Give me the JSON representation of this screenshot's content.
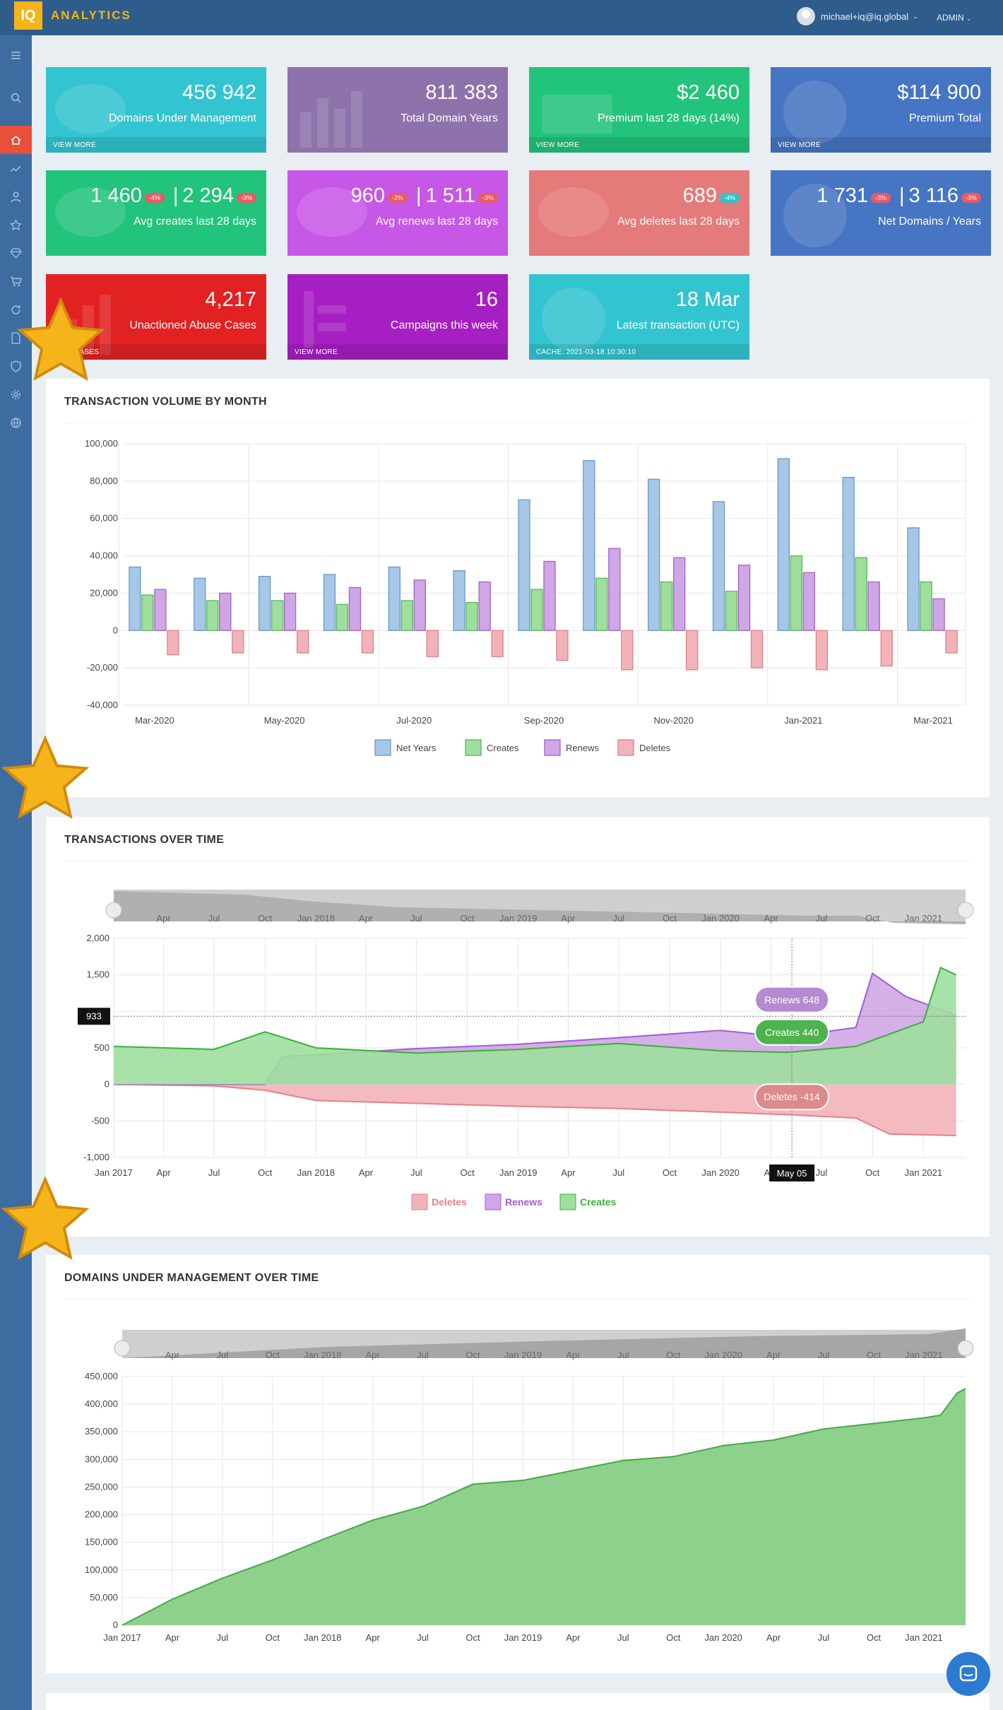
{
  "topbar": {
    "logo": "IQ",
    "brand": "ANALYTICS",
    "user": "michael+iq@iq.global",
    "role": "ADMIN"
  },
  "sidebar": [
    "menu-icon",
    "search-icon",
    "home-icon",
    "trend-icon",
    "user-icon",
    "star-icon",
    "diamond-icon",
    "cart-icon",
    "refresh-icon",
    "document-icon",
    "shield-icon",
    "gear-icon",
    "globe-icon"
  ],
  "tiles": [
    {
      "id": "domains",
      "color": "#33c4d1",
      "value": "456 942",
      "label": "Domains Under Management",
      "footer": "VIEW MORE"
    },
    {
      "id": "years",
      "color": "#8e72ac",
      "value": "811 383",
      "label": "Total Domain Years",
      "footer": ""
    },
    {
      "id": "premium28",
      "color": "#22c37b",
      "value": "$2 460",
      "label": "Premium last 28 days (14%)",
      "footer": "VIEW MORE"
    },
    {
      "id": "premiumtotal",
      "color": "#4675c3",
      "value": "$114 900",
      "label": "Premium Total",
      "footer": "VIEW MORE"
    },
    {
      "id": "creates",
      "color": "#22c37b",
      "value_a": "1 460",
      "badge_a": "-4%",
      "value_b": "2 294",
      "badge_b": "-3%",
      "label": "Avg creates last 28 days"
    },
    {
      "id": "renews",
      "color": "#c757e6",
      "value_a": "960",
      "badge_a": "-2%",
      "value_b": "1 511",
      "badge_b": "-3%",
      "label": "Avg renews last 28 days"
    },
    {
      "id": "deletes",
      "color": "#e57a7a",
      "value": "689",
      "badge": "-4%",
      "label": "Avg deletes last 28 days"
    },
    {
      "id": "net",
      "color": "#4675c3",
      "value_a": "1 731",
      "badge_a": "-3%",
      "value_b": "3 116",
      "badge_b": "-3%",
      "label": "Net Domains / Years"
    },
    {
      "id": "abuse",
      "color": "#e22222",
      "value": "4,217",
      "label": "Unactioned Abuse Cases",
      "footer": "VIEW CASES"
    },
    {
      "id": "campaigns",
      "color": "#a61fc2",
      "value": "16",
      "label": "Campaigns this week",
      "footer": "VIEW MORE"
    },
    {
      "id": "latest",
      "color": "#33c4d1",
      "value": "18 Mar",
      "label": "Latest transaction (UTC)",
      "footer": "CACHE: 2021-03-18 10:30:10"
    }
  ],
  "panel1": {
    "title": "TRANSACTION VOLUME BY MONTH"
  },
  "panel2": {
    "title": "TRANSACTIONS OVER TIME"
  },
  "panel3": {
    "title": "DOMAINS UNDER MANAGEMENT OVER TIME"
  },
  "colors": {
    "netyears": "#a6c8e6",
    "creates": "#9edf9e",
    "renews": "#cfa6e6",
    "deletes": "#f2b3b8",
    "dum": "#8dd18d"
  },
  "chart_data": [
    {
      "type": "bar",
      "title": "TRANSACTION VOLUME BY MONTH",
      "categories": [
        "Mar-2020",
        "Apr-2020",
        "May-2020",
        "Jun-2020",
        "Jul-2020",
        "Aug-2020",
        "Sep-2020",
        "Oct-2020",
        "Nov-2020",
        "Dec-2020",
        "Jan-2021",
        "Feb-2021",
        "Mar-2021"
      ],
      "xtick_labels": [
        "Mar-2020",
        "May-2020",
        "Jul-2020",
        "Sep-2020",
        "Nov-2020",
        "Jan-2021",
        "Mar-2021"
      ],
      "ylim": [
        -40000,
        100000
      ],
      "yticks": [
        "100,000",
        "80,000",
        "60,000",
        "40,000",
        "20,000",
        "0",
        "-20,000",
        "-40,000"
      ],
      "series": [
        {
          "name": "Net Years",
          "values": [
            34000,
            28000,
            29000,
            30000,
            34000,
            32000,
            70000,
            91000,
            81000,
            69000,
            92000,
            82000,
            55000
          ]
        },
        {
          "name": "Creates",
          "values": [
            19000,
            16000,
            16000,
            14000,
            16000,
            15000,
            22000,
            28000,
            26000,
            21000,
            40000,
            39000,
            26000
          ]
        },
        {
          "name": "Renews",
          "values": [
            22000,
            20000,
            20000,
            23000,
            27000,
            26000,
            37000,
            44000,
            39000,
            35000,
            31000,
            26000,
            17000
          ]
        },
        {
          "name": "Deletes",
          "values": [
            -13000,
            -12000,
            -12000,
            -12000,
            -14000,
            -14000,
            -16000,
            -21000,
            -21000,
            -20000,
            -21000,
            -19000,
            -12000
          ]
        }
      ],
      "legend": [
        "Net Years",
        "Creates",
        "Renews",
        "Deletes"
      ],
      "legend_position": "bottom"
    },
    {
      "type": "area",
      "title": "TRANSACTIONS OVER TIME",
      "x_range": [
        "2017-01-01",
        "2021-03-18"
      ],
      "xticks": [
        "Jan 2017",
        "Apr",
        "Jul",
        "Oct",
        "Jan 2018",
        "Apr",
        "Jul",
        "Oct",
        "Jan 2019",
        "Apr",
        "Jul",
        "Oct",
        "Jan 2020",
        "Apr",
        "Jul",
        "Oct",
        "Jan 2021"
      ],
      "navigator_ticks": [
        "Apr",
        "Jul",
        "Oct",
        "Jan 2018",
        "Apr",
        "Jul",
        "Oct",
        "Jan 2019",
        "Apr",
        "Jul",
        "Oct",
        "Jan 2020",
        "Apr",
        "Jul",
        "Oct",
        "Jan 2021"
      ],
      "ylim": [
        -1000,
        2000
      ],
      "yticks": [
        "2,000",
        "1,500",
        "1,000",
        "500",
        "0",
        "-500",
        "-1,000"
      ],
      "series": [
        {
          "name": "Deletes",
          "points": [
            [
              "2017-01",
              0
            ],
            [
              "2017-07",
              -20
            ],
            [
              "2017-10",
              -80
            ],
            [
              "2018-01",
              -220
            ],
            [
              "2018-07",
              -260
            ],
            [
              "2019-01",
              -300
            ],
            [
              "2019-07",
              -330
            ],
            [
              "2020-01",
              -380
            ],
            [
              "2020-05",
              -414
            ],
            [
              "2020-09",
              -460
            ],
            [
              "2020-11",
              -680
            ],
            [
              "2021-03",
              -700
            ]
          ]
        },
        {
          "name": "Renews",
          "points": [
            [
              "2017-01",
              0
            ],
            [
              "2017-10",
              0
            ],
            [
              "2017-11",
              380
            ],
            [
              "2018-07",
              490
            ],
            [
              "2019-01",
              550
            ],
            [
              "2019-07",
              640
            ],
            [
              "2020-01",
              740
            ],
            [
              "2020-05",
              648
            ],
            [
              "2020-09",
              780
            ],
            [
              "2020-10",
              1520
            ],
            [
              "2020-12",
              1200
            ],
            [
              "2021-03",
              950
            ]
          ]
        },
        {
          "name": "Creates",
          "points": [
            [
              "2017-01",
              520
            ],
            [
              "2017-07",
              480
            ],
            [
              "2017-10",
              720
            ],
            [
              "2018-01",
              500
            ],
            [
              "2018-07",
              430
            ],
            [
              "2019-01",
              480
            ],
            [
              "2019-07",
              560
            ],
            [
              "2020-01",
              460
            ],
            [
              "2020-05",
              440
            ],
            [
              "2020-09",
              520
            ],
            [
              "2021-01",
              860
            ],
            [
              "2021-02",
              1600
            ],
            [
              "2021-03",
              1500
            ]
          ]
        }
      ],
      "crosshair_value": "933",
      "crosshair_date": "May 05",
      "tooltips": [
        "Renews 648",
        "Creates 440",
        "Deletes -414"
      ],
      "legend": [
        "Deletes",
        "Renews",
        "Creates"
      ],
      "legend_position": "bottom"
    },
    {
      "type": "area",
      "title": "DOMAINS UNDER MANAGEMENT OVER TIME",
      "xticks": [
        "Jan 2017",
        "Apr",
        "Jul",
        "Oct",
        "Jan 2018",
        "Apr",
        "Jul",
        "Oct",
        "Jan 2019",
        "Apr",
        "Jul",
        "Oct",
        "Jan 2020",
        "Apr",
        "Jul",
        "Oct",
        "Jan 2021"
      ],
      "navigator_ticks": [
        "Apr",
        "Jul",
        "Oct",
        "Jan 2018",
        "Apr",
        "Jul",
        "Oct",
        "Jan 2019",
        "Apr",
        "Jul",
        "Oct",
        "Jan 2020",
        "Apr",
        "Jul",
        "Oct",
        "Jan 2021"
      ],
      "ylim": [
        0,
        450000
      ],
      "yticks": [
        "450,000",
        "400,000",
        "350,000",
        "300,000",
        "250,000",
        "200,000",
        "150,000",
        "100,000",
        "50,000",
        "0"
      ],
      "series": [
        {
          "name": "Domains",
          "points": [
            [
              0,
              0
            ],
            [
              3,
              47000
            ],
            [
              6,
              85000
            ],
            [
              9,
              118000
            ],
            [
              12,
              155000
            ],
            [
              15,
              190000
            ],
            [
              18,
              215000
            ],
            [
              21,
              255000
            ],
            [
              24,
              262000
            ],
            [
              27,
              280000
            ],
            [
              30,
              298000
            ],
            [
              33,
              305000
            ],
            [
              36,
              325000
            ],
            [
              39,
              335000
            ],
            [
              42,
              355000
            ],
            [
              45,
              365000
            ],
            [
              48,
              375000
            ],
            [
              49,
              380000
            ],
            [
              50,
              420000
            ],
            [
              50.5,
              428000
            ]
          ]
        }
      ]
    }
  ]
}
